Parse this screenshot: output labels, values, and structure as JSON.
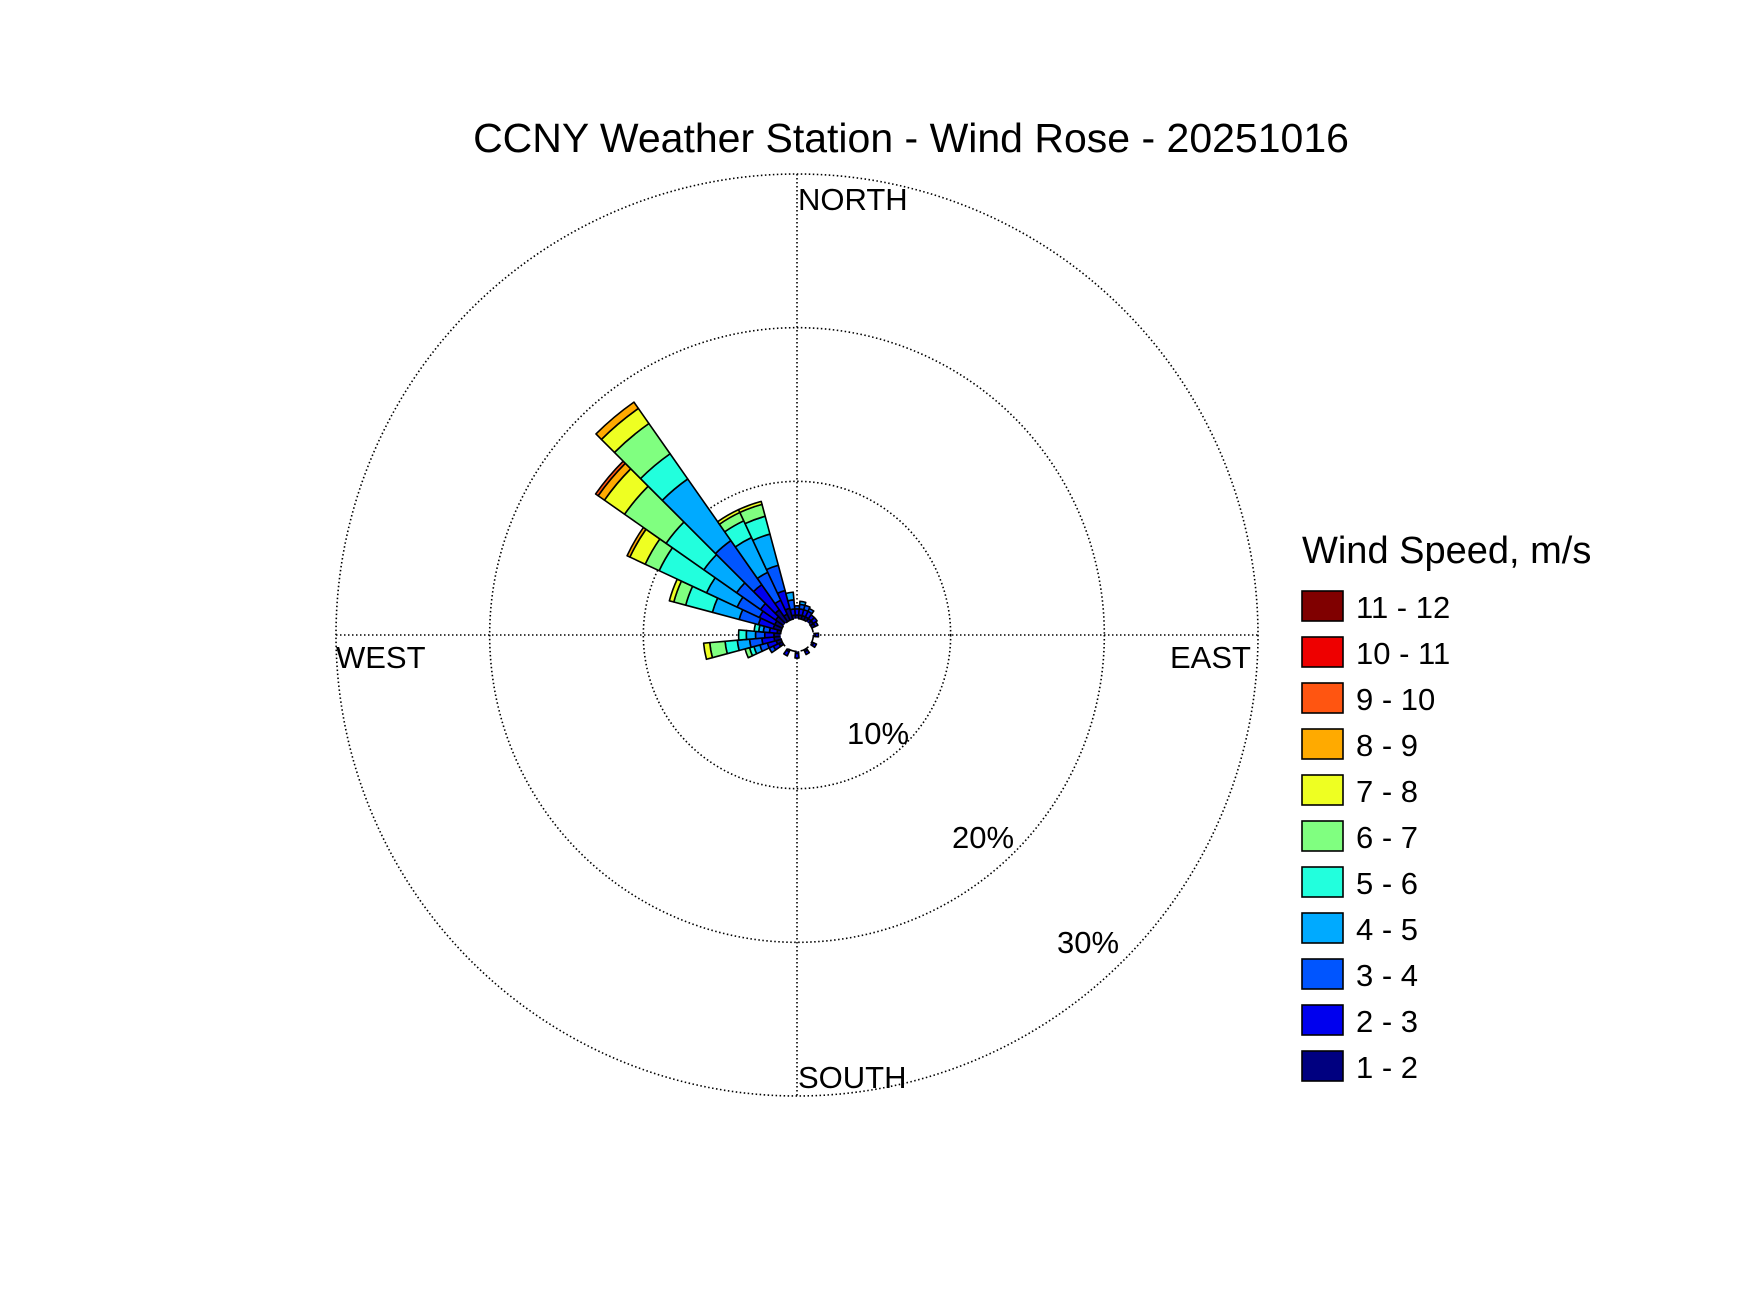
{
  "chart_data": {
    "type": "wind-rose",
    "title": "CCNY Weather Station - Wind Rose - 20251016",
    "directions": {
      "north": "NORTH",
      "south": "SOUTH",
      "east": "EAST",
      "west": "WEST"
    },
    "radial_ticks": [
      {
        "value": 10,
        "label": "10%"
      },
      {
        "value": 20,
        "label": "20%"
      },
      {
        "value": 30,
        "label": "30%"
      }
    ],
    "rmax": 30,
    "grid": true,
    "legend": {
      "title": "Wind Speed, m/s",
      "placement": "right",
      "items": [
        {
          "label": "11 - 12",
          "color": "#800000"
        },
        {
          "label": "10 - 11",
          "color": "#ee0000"
        },
        {
          "label": "9 - 10",
          "color": "#ff5511"
        },
        {
          "label": "8 - 9",
          "color": "#ffaa00"
        },
        {
          "label": "7 - 8",
          "color": "#eeff22"
        },
        {
          "label": "6 - 7",
          "color": "#80ff80"
        },
        {
          "label": "5 - 6",
          "color": "#22ffdd"
        },
        {
          "label": "4 - 5",
          "color": "#00aaff"
        },
        {
          "label": "3 - 4",
          "color": "#0055ff"
        },
        {
          "label": "2 - 3",
          "color": "#0000ee"
        },
        {
          "label": "1 - 2",
          "color": "#000080"
        }
      ]
    },
    "bins": [
      "1 - 2",
      "2 - 3",
      "3 - 4",
      "4 - 5",
      "5 - 6",
      "6 - 7",
      "7 - 8",
      "8 - 9",
      "9 - 10",
      "10 - 11",
      "11 - 12"
    ],
    "sector_width_deg": 10,
    "calm_radius_pct": 1,
    "sectors": [
      {
        "dir": 0,
        "values": [
          0.3,
          0.4,
          0.2
        ]
      },
      {
        "dir": 10,
        "values": [
          0.3,
          0.4,
          0.3,
          0.2
        ]
      },
      {
        "dir": 20,
        "values": [
          0.3,
          0.4,
          0.3
        ]
      },
      {
        "dir": 30,
        "values": [
          0.3,
          0.4,
          0.2
        ]
      },
      {
        "dir": 40,
        "values": [
          0.3,
          0.3
        ]
      },
      {
        "dir": 50,
        "values": [
          0.3,
          0.3
        ]
      },
      {
        "dir": 60,
        "values": [
          0.3,
          0.2
        ]
      },
      {
        "dir": 90,
        "values": [
          0.2,
          0.2
        ]
      },
      {
        "dir": 120,
        "values": [
          0.2,
          0.2
        ]
      },
      {
        "dir": 150,
        "values": [
          0.2,
          0.2
        ]
      },
      {
        "dir": 180,
        "values": [
          0.2,
          0.3
        ]
      },
      {
        "dir": 210,
        "values": [
          0.2,
          0.3
        ]
      },
      {
        "dir": 240,
        "values": [
          0.3,
          0.4,
          0.3
        ]
      },
      {
        "dir": 250,
        "values": [
          0.4,
          0.6,
          0.5,
          0.4,
          0.3,
          0.3
        ]
      },
      {
        "dir": 260,
        "values": [
          0.5,
          0.8,
          0.8,
          0.8,
          0.8,
          1.0,
          0.4
        ]
      },
      {
        "dir": 270,
        "values": [
          0.5,
          0.6,
          0.6,
          0.6,
          0.5
        ]
      },
      {
        "dir": 280,
        "values": [
          0.3,
          0.5,
          0.4,
          0.3,
          0.3
        ]
      },
      {
        "dir": 290,
        "values": [
          0.6,
          1.0,
          1.3,
          1.8,
          1.8,
          0.8,
          0.3
        ]
      },
      {
        "dir": 300,
        "values": [
          0.6,
          1.1,
          1.6,
          2.2,
          3.4,
          1.0,
          1.1,
          0.2
        ]
      },
      {
        "dir": 310,
        "values": [
          0.7,
          1.2,
          1.9,
          2.6,
          3.0,
          3.3,
          1.6,
          0.5,
          0.2
        ]
      },
      {
        "dir": 320,
        "values": [
          1.0,
          2.0,
          3.5,
          4.9,
          2.0,
          2.4,
          1.2,
          0.5
        ]
      },
      {
        "dir": 330,
        "values": [
          0.5,
          1.0,
          2.0,
          2.5,
          1.2,
          0.6,
          0.2
        ]
      },
      {
        "dir": 340,
        "values": [
          0.8,
          1.2,
          1.7,
          2.1,
          1.2,
          0.8,
          0.2
        ]
      },
      {
        "dir": 350,
        "values": [
          0.3,
          0.4,
          0.6,
          0.5
        ]
      }
    ]
  }
}
